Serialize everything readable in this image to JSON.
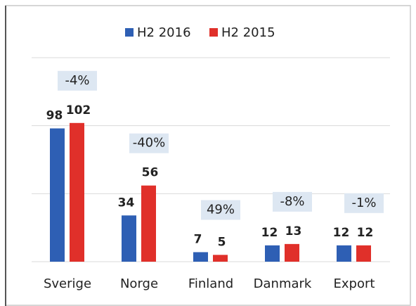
{
  "chart_data": {
    "type": "bar",
    "categories": [
      "Sverige",
      "Norge",
      "Finland",
      "Danmark",
      "Export"
    ],
    "series": [
      {
        "name": "H2 2016",
        "color": "#2e5fb4",
        "values": [
          98,
          34,
          7,
          12,
          12
        ]
      },
      {
        "name": "H2 2015",
        "color": "#e0302a",
        "values": [
          102,
          56,
          5,
          13,
          12
        ]
      }
    ],
    "annotations": [
      "-4%",
      "-40%",
      "49%",
      "-8%",
      "-1%"
    ],
    "ylim": [
      0,
      150
    ],
    "yticks": [
      0,
      50,
      100,
      150
    ],
    "grid": true,
    "ytick_labels": false,
    "legend": "top"
  }
}
